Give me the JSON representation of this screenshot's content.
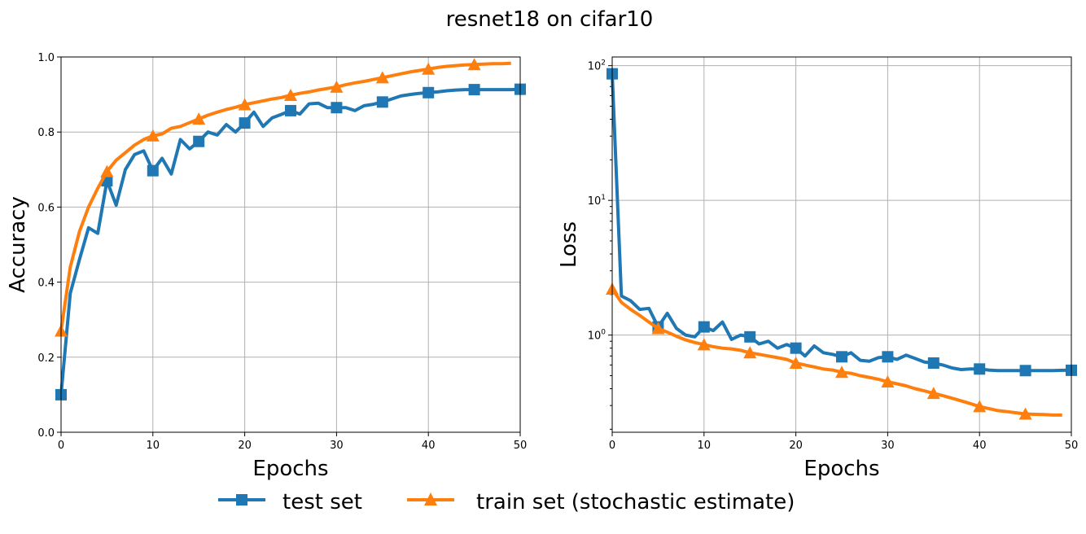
{
  "figure_title": "resnet18 on cifar10",
  "legend": {
    "placement": "bottom-center",
    "entries": [
      {
        "label": "test set",
        "color": "#1f77b4",
        "marker": "square"
      },
      {
        "label": "train set (stochastic estimate)",
        "color": "#ff7f0e",
        "marker": "triangle"
      }
    ]
  },
  "chart_data": [
    {
      "type": "line",
      "xlabel": "Epochs",
      "ylabel": "Accuracy",
      "xlim": [
        0,
        50
      ],
      "ylim": [
        0,
        1
      ],
      "yscale": "linear",
      "grid": true,
      "xticks": [
        "0",
        "10",
        "20",
        "30",
        "40",
        "50"
      ],
      "yticks": [
        "0.0",
        "0.2",
        "0.4",
        "0.6",
        "0.8",
        "1.0"
      ],
      "series": [
        {
          "name": "test set",
          "color": "#1f77b4",
          "marker": "square",
          "markevery": 5,
          "values": [
            0.1,
            0.37,
            0.46,
            0.545,
            0.53,
            0.67,
            0.605,
            0.7,
            0.74,
            0.75,
            0.697,
            0.73,
            0.688,
            0.78,
            0.755,
            0.775,
            0.8,
            0.792,
            0.82,
            0.8,
            0.824,
            0.853,
            0.815,
            0.838,
            0.847,
            0.857,
            0.848,
            0.875,
            0.877,
            0.865,
            0.865,
            0.865,
            0.857,
            0.87,
            0.874,
            0.88,
            0.888,
            0.896,
            0.9,
            0.903,
            0.905,
            0.907,
            0.91,
            0.912,
            0.913,
            0.913,
            0.913,
            0.913,
            0.913,
            0.913,
            0.914
          ]
        },
        {
          "name": "train set (stochastic estimate)",
          "color": "#ff7f0e",
          "marker": "triangle",
          "markevery": 5,
          "values": [
            0.27,
            0.44,
            0.535,
            0.6,
            0.65,
            0.695,
            0.725,
            0.745,
            0.765,
            0.78,
            0.79,
            0.795,
            0.81,
            0.815,
            0.825,
            0.835,
            0.845,
            0.853,
            0.86,
            0.866,
            0.873,
            0.878,
            0.883,
            0.888,
            0.892,
            0.898,
            0.903,
            0.907,
            0.912,
            0.916,
            0.92,
            0.926,
            0.931,
            0.935,
            0.94,
            0.945,
            0.95,
            0.955,
            0.96,
            0.964,
            0.968,
            0.972,
            0.975,
            0.977,
            0.979,
            0.98,
            0.981,
            0.982,
            0.982,
            0.983
          ]
        }
      ]
    },
    {
      "type": "line",
      "xlabel": "Epochs",
      "ylabel": "Loss",
      "xlim": [
        0,
        50
      ],
      "ylim": [
        0.19,
        116
      ],
      "yscale": "log",
      "grid": true,
      "xticks": [
        "0",
        "10",
        "20",
        "30",
        "40",
        "50"
      ],
      "yticks": [
        {
          "base": "10",
          "exp": "0"
        },
        {
          "base": "10",
          "exp": "1"
        },
        {
          "base": "10",
          "exp": "2"
        }
      ],
      "series": [
        {
          "name": "test set",
          "color": "#1f77b4",
          "marker": "square",
          "markevery": 5,
          "values": [
            87,
            1.95,
            1.8,
            1.55,
            1.58,
            1.15,
            1.45,
            1.12,
            1.0,
            0.97,
            1.15,
            1.08,
            1.25,
            0.93,
            1.0,
            0.97,
            0.86,
            0.9,
            0.8,
            0.85,
            0.8,
            0.7,
            0.83,
            0.74,
            0.72,
            0.69,
            0.74,
            0.65,
            0.64,
            0.68,
            0.69,
            0.66,
            0.71,
            0.67,
            0.63,
            0.62,
            0.6,
            0.57,
            0.555,
            0.56,
            0.56,
            0.55,
            0.545,
            0.545,
            0.545,
            0.545,
            0.545,
            0.545,
            0.545,
            0.548,
            0.548
          ]
        },
        {
          "name": "train set (stochastic estimate)",
          "color": "#ff7f0e",
          "marker": "triangle",
          "markevery": 5,
          "values": [
            2.2,
            1.75,
            1.55,
            1.4,
            1.25,
            1.12,
            1.05,
            0.98,
            0.92,
            0.88,
            0.85,
            0.82,
            0.8,
            0.79,
            0.77,
            0.74,
            0.72,
            0.7,
            0.68,
            0.66,
            0.62,
            0.6,
            0.58,
            0.56,
            0.55,
            0.53,
            0.52,
            0.5,
            0.485,
            0.47,
            0.45,
            0.435,
            0.42,
            0.4,
            0.385,
            0.37,
            0.355,
            0.34,
            0.325,
            0.31,
            0.295,
            0.285,
            0.275,
            0.27,
            0.265,
            0.26,
            0.258,
            0.257,
            0.255,
            0.255
          ]
        }
      ]
    }
  ]
}
